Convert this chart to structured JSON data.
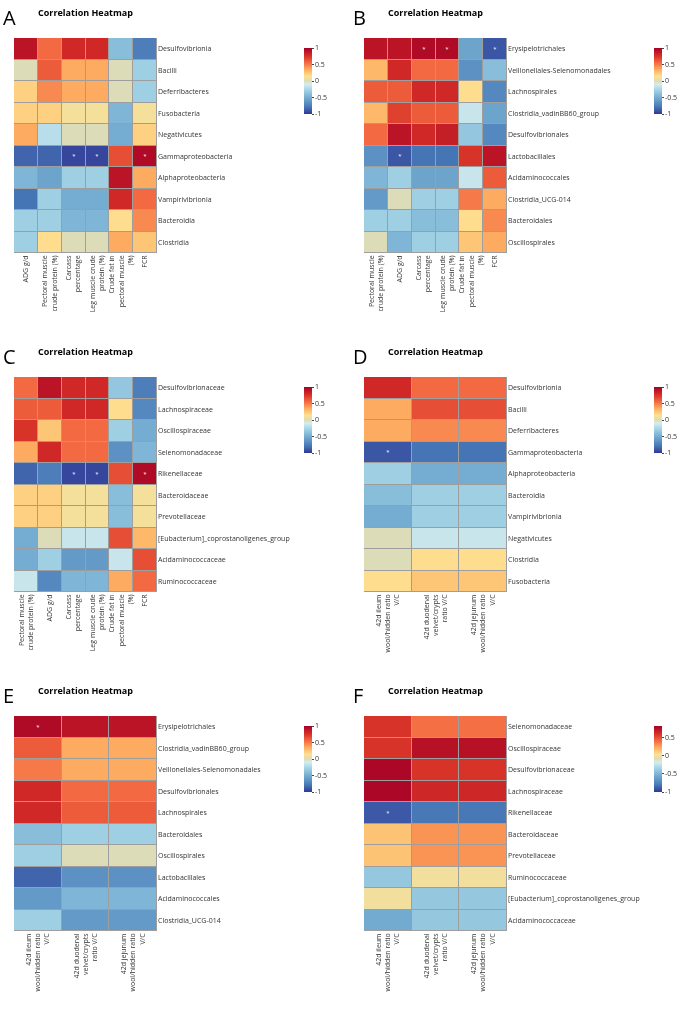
{
  "chart_data": [
    {
      "type": "heatmap",
      "title": "Correlation Heatmap",
      "annotations": [
        "A"
      ],
      "categories": [
        "ADG g/d",
        "Pectoral muscle crude protein (%)",
        "Carcass percentage",
        "Leg muscle crude protein (%)",
        "Crude fat in pectoral muscle (%)",
        "FCR"
      ],
      "y_categories": [
        "Desulfovibrionia",
        "Bacilli",
        "Deferribacteres",
        "Fusobacteria",
        "Negativicutes",
        "Gammaproteobacteria",
        "Alphaproteobacteria",
        "Vampirivibrionia",
        "Bacteroidia",
        "Clostridia"
      ],
      "cells": [
        [
          0.9,
          0.55,
          0.8,
          0.8,
          -0.4,
          -0.75
        ],
        [
          0,
          0.6,
          0.35,
          0.35,
          0,
          -0.3
        ],
        [
          0.2,
          0.45,
          0.35,
          0.35,
          0,
          -0.3
        ],
        [
          0.2,
          0.2,
          0.1,
          0.1,
          -0.45,
          0.1
        ],
        [
          0.35,
          -0.2,
          0,
          0,
          -0.5,
          0.2
        ],
        [
          -0.85,
          -0.85,
          -0.95,
          -0.95,
          0.65,
          0.95
        ],
        [
          -0.45,
          -0.55,
          -0.3,
          -0.3,
          0.9,
          0.35
        ],
        [
          -0.8,
          -0.3,
          -0.5,
          -0.5,
          0.8,
          0.55
        ],
        [
          -0.3,
          -0.3,
          -0.45,
          -0.45,
          0.15,
          0.45
        ],
        [
          -0.3,
          0.15,
          0,
          0,
          0.35,
          0.25
        ]
      ],
      "cell_labels": [
        [
          null,
          null,
          null,
          null,
          null,
          null
        ],
        [
          null,
          null,
          null,
          null,
          null,
          null
        ],
        [
          null,
          null,
          null,
          null,
          null,
          null
        ],
        [
          null,
          null,
          null,
          null,
          null,
          null
        ],
        [
          null,
          null,
          null,
          null,
          null,
          null
        ],
        [
          null,
          null,
          "*",
          "*",
          null,
          "*"
        ],
        [
          null,
          null,
          null,
          null,
          null,
          null
        ],
        [
          null,
          null,
          null,
          null,
          null,
          null
        ],
        [
          null,
          null,
          null,
          null,
          null,
          null
        ],
        [
          null,
          null,
          null,
          null,
          null,
          null
        ]
      ],
      "clim": [
        -1,
        1
      ],
      "cticks": [
        -1,
        -0.5,
        0,
        0.5,
        1
      ]
    },
    {
      "type": "heatmap",
      "title": "Correlation Heatmap",
      "annotations": [
        "B"
      ],
      "categories": [
        "Pectoral muscle crude protein (%)",
        "ADG g/d",
        "Carcass percentage",
        "Leg muscle crude protein (%)",
        "Crude fat in pectoral muscle (%)",
        "FCR"
      ],
      "y_categories": [
        "Erysipelotrichales",
        "Veillonellales-Selenomonadales",
        "Lachnospirales",
        "Clostridia_vadinBB60_group",
        "Desulfovibrionales",
        "Lactobacillales",
        "Acidaminococcales",
        "Clostridia_UCG-014",
        "Bacteroidales",
        "Oscillospirales"
      ],
      "cells": [
        [
          0.9,
          0.9,
          0.95,
          0.95,
          -0.55,
          -0.9
        ],
        [
          0.3,
          0.8,
          0.55,
          0.55,
          -0.65,
          -0.4
        ],
        [
          0.6,
          0.6,
          0.8,
          0.8,
          0.15,
          -0.7
        ],
        [
          0.3,
          0.7,
          0.6,
          0.6,
          -0.15,
          -0.55
        ],
        [
          0.55,
          0.9,
          0.8,
          0.85,
          -0.35,
          -0.7
        ],
        [
          -0.65,
          -0.9,
          -0.8,
          -0.8,
          0.75,
          0.9
        ],
        [
          -0.45,
          -0.3,
          -0.55,
          -0.55,
          -0.15,
          0.6
        ],
        [
          -0.6,
          0,
          -0.3,
          -0.3,
          0.5,
          0.35
        ],
        [
          -0.3,
          -0.3,
          -0.4,
          -0.4,
          0.15,
          0.45
        ],
        [
          0,
          -0.45,
          -0.3,
          -0.3,
          0.25,
          0.35
        ]
      ],
      "cell_labels": [
        [
          null,
          null,
          "*",
          "*",
          null,
          "*"
        ],
        [
          null,
          null,
          null,
          null,
          null,
          null
        ],
        [
          null,
          null,
          null,
          null,
          null,
          null
        ],
        [
          null,
          null,
          null,
          null,
          null,
          null
        ],
        [
          null,
          null,
          null,
          null,
          null,
          null
        ],
        [
          null,
          "*",
          null,
          null,
          null,
          null
        ],
        [
          null,
          null,
          null,
          null,
          null,
          null
        ],
        [
          null,
          null,
          null,
          null,
          null,
          null
        ],
        [
          null,
          null,
          null,
          null,
          null,
          null
        ],
        [
          null,
          null,
          null,
          null,
          null,
          null
        ]
      ],
      "clim": [
        -1,
        1
      ],
      "cticks": [
        -1,
        -0.5,
        0,
        0.5,
        1
      ]
    },
    {
      "type": "heatmap",
      "title": "Correlation Heatmap",
      "annotations": [
        "C"
      ],
      "categories": [
        "Pectoral muscle crude protein (%)",
        "ADG g/d",
        "Carcass percentage",
        "Leg muscle crude protein (%)",
        "Crude fat in pectoral muscle (%)",
        "FCR"
      ],
      "y_categories": [
        "Desulfovibrionaceae",
        "Lachnospiraceae",
        "Oscillospiraceae",
        "Selenomonadaceae",
        "Rikenellaceae",
        "Bacteroidaceae",
        "Prevotellaceae",
        "[Eubacterium]_coprostanoligenes_group",
        "Acidaminococcaceae",
        "Ruminococcaceae"
      ],
      "cells": [
        [
          0.55,
          0.9,
          0.8,
          0.8,
          -0.35,
          -0.75
        ],
        [
          0.6,
          0.6,
          0.8,
          0.8,
          0.15,
          -0.7
        ],
        [
          0.75,
          0.25,
          0.55,
          0.55,
          -0.3,
          -0.5
        ],
        [
          0.35,
          0.8,
          0.55,
          0.55,
          -0.65,
          -0.45
        ],
        [
          -0.85,
          -0.75,
          -0.95,
          -0.95,
          0.65,
          0.95
        ],
        [
          0.2,
          0.2,
          0.1,
          0.1,
          -0.4,
          0.1
        ],
        [
          0.2,
          0.2,
          0.1,
          0.1,
          -0.4,
          0.1
        ],
        [
          -0.5,
          0,
          -0.15,
          -0.15,
          0.65,
          0.3
        ],
        [
          -0.5,
          -0.3,
          -0.6,
          -0.6,
          -0.15,
          0.65
        ],
        [
          -0.15,
          -0.7,
          -0.45,
          -0.45,
          0.35,
          0.55
        ]
      ],
      "cell_labels": [
        [
          null,
          null,
          null,
          null,
          null,
          null
        ],
        [
          null,
          null,
          null,
          null,
          null,
          null
        ],
        [
          null,
          null,
          null,
          null,
          null,
          null
        ],
        [
          null,
          null,
          null,
          null,
          null,
          null
        ],
        [
          null,
          null,
          "*",
          "*",
          null,
          "*"
        ],
        [
          null,
          null,
          null,
          null,
          null,
          null
        ],
        [
          null,
          null,
          null,
          null,
          null,
          null
        ],
        [
          null,
          null,
          null,
          null,
          null,
          null
        ],
        [
          null,
          null,
          null,
          null,
          null,
          null
        ],
        [
          null,
          null,
          null,
          null,
          null,
          null
        ]
      ],
      "clim": [
        -1,
        1
      ],
      "cticks": [
        -1,
        -0.5,
        0,
        0.5,
        1
      ]
    },
    {
      "type": "heatmap",
      "title": "Correlation Heatmap",
      "annotations": [
        "D"
      ],
      "categories": [
        "42d ileum wool/hidden ratio V/C",
        "42d duodenal velvet/crypts ratio V/C",
        "42d jejunum wool/hidden ratio V/C"
      ],
      "y_categories": [
        "Desulfovibrionia",
        "Bacilli",
        "Deferribacteres",
        "Gammaproteobacteria",
        "Alphaproteobacteria",
        "Bacteroidia",
        "Vampirivibrionia",
        "Negativicutes",
        "Clostridia",
        "Fusobacteria"
      ],
      "cells": [
        [
          0.8,
          0.55,
          0.55
        ],
        [
          0.35,
          0.65,
          0.65
        ],
        [
          0.35,
          0.45,
          0.45
        ],
        [
          -0.9,
          -0.8,
          -0.8
        ],
        [
          -0.3,
          -0.5,
          -0.5
        ],
        [
          -0.4,
          -0.3,
          -0.3
        ],
        [
          -0.5,
          -0.3,
          -0.3
        ],
        [
          0,
          -0.15,
          -0.15
        ],
        [
          0,
          0.15,
          0.15
        ],
        [
          0.15,
          0.25,
          0.25
        ]
      ],
      "cell_labels": [
        [
          null,
          null,
          null
        ],
        [
          null,
          null,
          null
        ],
        [
          null,
          null,
          null
        ],
        [
          "*",
          null,
          null
        ],
        [
          null,
          null,
          null
        ],
        [
          null,
          null,
          null
        ],
        [
          null,
          null,
          null
        ],
        [
          null,
          null,
          null
        ],
        [
          null,
          null,
          null
        ],
        [
          null,
          null,
          null
        ]
      ],
      "clim": [
        -1,
        1
      ],
      "cticks": [
        -1,
        -0.5,
        0,
        0.5,
        1
      ]
    },
    {
      "type": "heatmap",
      "title": "Correlation Heatmap",
      "annotations": [
        "E"
      ],
      "categories": [
        "42d ileum wool/hidden ratio V/C",
        "42d duodenal velvet/crypts ratio V/C",
        "42d jejunum wool/hidden ratio V/C"
      ],
      "y_categories": [
        "Erysipelotrichales",
        "Clostridia_vadinBB60_group",
        "Veillonellales-Selenomonadales",
        "Desulfovibrionales",
        "Lachnospirales",
        "Bacteroidales",
        "Oscillospirales",
        "Lactobacillales",
        "Acidaminococcales",
        "Clostridia_UCG-014"
      ],
      "cells": [
        [
          0.95,
          0.9,
          0.9
        ],
        [
          0.6,
          0.35,
          0.35
        ],
        [
          0.5,
          0.35,
          0.35
        ],
        [
          0.8,
          0.55,
          0.55
        ],
        [
          0.8,
          0.6,
          0.6
        ],
        [
          -0.4,
          -0.3,
          -0.3
        ],
        [
          -0.3,
          0,
          0
        ],
        [
          -0.85,
          -0.65,
          -0.65
        ],
        [
          -0.6,
          -0.45,
          -0.45
        ],
        [
          -0.3,
          -0.6,
          -0.6
        ]
      ],
      "cell_labels": [
        [
          "*",
          null,
          null
        ],
        [
          null,
          null,
          null
        ],
        [
          null,
          null,
          null
        ],
        [
          null,
          null,
          null
        ],
        [
          null,
          null,
          null
        ],
        [
          null,
          null,
          null
        ],
        [
          null,
          null,
          null
        ],
        [
          null,
          null,
          null
        ],
        [
          null,
          null,
          null
        ],
        [
          null,
          null,
          null
        ]
      ],
      "clim": [
        -1,
        1
      ],
      "cticks": [
        -1,
        -0.5,
        0,
        0.5,
        1
      ]
    },
    {
      "type": "heatmap",
      "title": "Correlation Heatmap",
      "annotations": [
        "F"
      ],
      "categories": [
        "42d ileum wool/hidden ratio V/C",
        "42d duodenal velvet/crypts ratio V/C",
        "42d jejunum wool/hidden ratio V/C"
      ],
      "y_categories": [
        "Selenomonadaceae",
        "Oscillospiraceae",
        "Desulfovibrionaceae",
        "Lachnospiraceae",
        "Rikenellaceae",
        "Bacteroidaceae",
        "Prevotellaceae",
        "Ruminococcaceae",
        "[Eubacterium]_coprostanoligenes_group",
        "Acidaminococcaceae"
      ],
      "cells": [
        [
          0.6,
          0.4,
          0.4
        ],
        [
          0.6,
          0.75,
          0.75
        ],
        [
          0.8,
          0.6,
          0.6
        ],
        [
          0.8,
          0.65,
          0.65
        ],
        [
          -0.9,
          -0.8,
          -0.8
        ],
        [
          0.15,
          0.3,
          0.3
        ],
        [
          0.15,
          0.3,
          0.3
        ],
        [
          -0.4,
          0,
          0
        ],
        [
          0,
          -0.4,
          -0.4
        ],
        [
          -0.55,
          -0.4,
          -0.4
        ]
      ],
      "cell_labels": [
        [
          null,
          null,
          null
        ],
        [
          null,
          null,
          null
        ],
        [
          null,
          null,
          null
        ],
        [
          null,
          null,
          null
        ],
        [
          "*",
          null,
          null
        ],
        [
          null,
          null,
          null
        ],
        [
          null,
          null,
          null
        ],
        [
          null,
          null,
          null
        ],
        [
          null,
          null,
          null
        ],
        [
          null,
          null,
          null
        ]
      ],
      "clim": [
        -1,
        0.83
      ],
      "cticks": [
        -1,
        -0.5,
        0,
        0.5
      ]
    }
  ]
}
